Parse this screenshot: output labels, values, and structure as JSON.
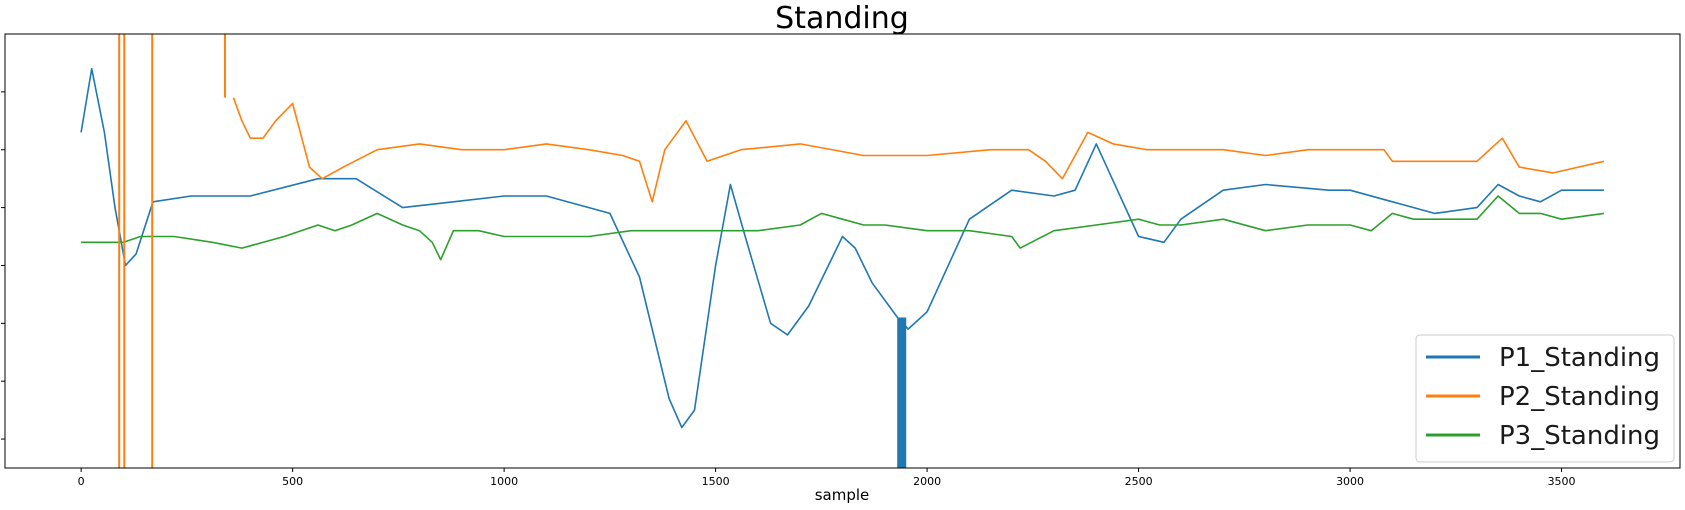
{
  "chart_data": {
    "type": "line",
    "title": "Standing",
    "xlabel": "sample",
    "ylabel": "",
    "xlim": [
      -180,
      3780
    ],
    "ylim": [
      0,
      7.5
    ],
    "x_ticks": [
      0,
      500,
      1000,
      1500,
      2000,
      2500,
      3000,
      3500
    ],
    "y_ticks": [
      0.5,
      1.5,
      2.5,
      3.5,
      4.5,
      5.5,
      6.5
    ],
    "grid": false,
    "legend": {
      "placement": "lower-right"
    },
    "colors": {
      "P1_Standing": "#1f77b4",
      "P2_Standing": "#ff7f0e",
      "P3_Standing": "#2ca02c"
    },
    "series": [
      {
        "name": "P1_Standing",
        "x": [
          0,
          25,
          55,
          80,
          105,
          130,
          170,
          260,
          400,
          560,
          650,
          760,
          880,
          1000,
          1100,
          1250,
          1320,
          1390,
          1420,
          1450,
          1500,
          1535,
          1570,
          1630,
          1670,
          1720,
          1800,
          1830,
          1870,
          1930,
          1955,
          2000,
          2100,
          2200,
          2300,
          2350,
          2400,
          2450,
          2500,
          2560,
          2600,
          2700,
          2800,
          2950,
          3000,
          3100,
          3200,
          3300,
          3350,
          3400,
          3450,
          3500,
          3600
        ],
        "y": [
          5.8,
          6.9,
          5.8,
          4.5,
          3.5,
          3.7,
          4.6,
          4.7,
          4.7,
          5.0,
          5.0,
          4.5,
          4.6,
          4.7,
          4.7,
          4.4,
          3.3,
          1.2,
          0.7,
          1.0,
          3.5,
          4.9,
          4.0,
          2.5,
          2.3,
          2.8,
          4.0,
          3.8,
          3.2,
          2.6,
          2.4,
          2.7,
          4.3,
          4.8,
          4.7,
          4.8,
          5.6,
          4.8,
          4.0,
          3.9,
          4.3,
          4.8,
          4.9,
          4.8,
          4.8,
          4.6,
          4.4,
          4.5,
          4.9,
          4.7,
          4.6,
          4.8,
          4.8
        ]
      },
      {
        "name": "P2_Standing",
        "x": [
          360,
          380,
          400,
          430,
          460,
          500,
          540,
          570,
          620,
          700,
          800,
          900,
          1000,
          1100,
          1200,
          1280,
          1320,
          1350,
          1380,
          1430,
          1480,
          1560,
          1700,
          1850,
          2000,
          2150,
          2240,
          2280,
          2320,
          2380,
          2440,
          2520,
          2600,
          2700,
          2800,
          2900,
          3000,
          3080,
          3100,
          3200,
          3300,
          3360,
          3400,
          3480,
          3600
        ],
        "y": [
          6.4,
          6.0,
          5.7,
          5.7,
          6.0,
          6.3,
          5.2,
          5.0,
          5.2,
          5.5,
          5.6,
          5.5,
          5.5,
          5.6,
          5.5,
          5.4,
          5.3,
          4.6,
          5.5,
          6.0,
          5.3,
          5.5,
          5.6,
          5.4,
          5.4,
          5.5,
          5.5,
          5.3,
          5.0,
          5.8,
          5.6,
          5.5,
          5.5,
          5.5,
          5.4,
          5.5,
          5.5,
          5.5,
          5.3,
          5.3,
          5.3,
          5.7,
          5.2,
          5.1,
          5.3
        ]
      },
      {
        "name": "P3_Standing",
        "x": [
          0,
          100,
          140,
          220,
          310,
          380,
          480,
          560,
          600,
          640,
          700,
          760,
          800,
          830,
          850,
          880,
          940,
          1000,
          1100,
          1200,
          1300,
          1400,
          1500,
          1600,
          1700,
          1750,
          1800,
          1850,
          1900,
          2000,
          2100,
          2200,
          2220,
          2300,
          2400,
          2500,
          2550,
          2600,
          2700,
          2800,
          2900,
          3000,
          3050,
          3100,
          3150,
          3200,
          3300,
          3350,
          3400,
          3450,
          3500,
          3600
        ],
        "y": [
          3.9,
          3.9,
          4.0,
          4.0,
          3.9,
          3.8,
          4.0,
          4.2,
          4.1,
          4.2,
          4.4,
          4.2,
          4.1,
          3.9,
          3.6,
          4.1,
          4.1,
          4.0,
          4.0,
          4.0,
          4.1,
          4.1,
          4.1,
          4.1,
          4.2,
          4.4,
          4.3,
          4.2,
          4.2,
          4.1,
          4.1,
          4.0,
          3.8,
          4.1,
          4.2,
          4.3,
          4.2,
          4.2,
          4.3,
          4.1,
          4.2,
          4.2,
          4.1,
          4.4,
          4.3,
          4.3,
          4.3,
          4.7,
          4.4,
          4.4,
          4.3,
          4.4
        ]
      }
    ],
    "vertical_spikes": [
      {
        "series": "P2_Standing",
        "x": 90,
        "y_from": 7.5,
        "y_to": 0
      },
      {
        "series": "P2_Standing",
        "x": 102,
        "y_from": 7.5,
        "y_to": 0
      },
      {
        "series": "P2_Standing",
        "x": 168,
        "y_from": 7.5,
        "y_to": 0
      },
      {
        "series": "P2_Standing",
        "x": 340,
        "y_from": 7.5,
        "y_to": 6.4
      },
      {
        "series": "P1_Standing",
        "x": 1940,
        "y_from": 2.6,
        "y_to": 0
      }
    ]
  }
}
